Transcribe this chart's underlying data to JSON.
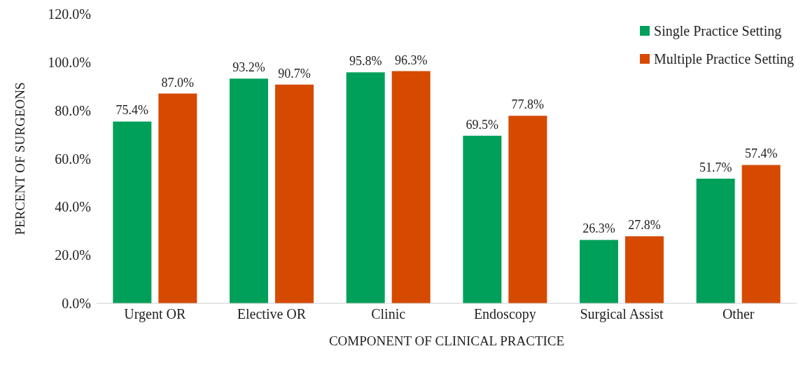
{
  "chart_data": {
    "type": "bar",
    "xlabel": "COMPONENT OF CLINICAL PRACTICE",
    "ylabel": "PERCENT OF SURGEONS",
    "categories": [
      "Urgent OR",
      "Elective OR",
      "Clinic",
      "Endoscopy",
      "Surgical Assist",
      "Other"
    ],
    "series": [
      {
        "name": "Single Practice Setting",
        "color": "#00a05a",
        "values": [
          75.4,
          93.2,
          95.8,
          69.5,
          26.3,
          51.7
        ],
        "value_labels": [
          "75.4%",
          "93.2%",
          "95.8%",
          "69.5%",
          "26.3%",
          "51.7%"
        ]
      },
      {
        "name": "Multiple Practice Setting",
        "color": "#d64a00",
        "values": [
          87.0,
          90.7,
          96.3,
          77.8,
          27.8,
          57.4
        ],
        "value_labels": [
          "87.0%",
          "90.7%",
          "96.3%",
          "77.8%",
          "27.8%",
          "57.4%"
        ]
      }
    ],
    "ylim": [
      0,
      120
    ],
    "yticks": [
      {
        "value": 0,
        "label": "0.0%"
      },
      {
        "value": 20,
        "label": "20.0%"
      },
      {
        "value": 40,
        "label": "40.0%"
      },
      {
        "value": 60,
        "label": "60.0%"
      },
      {
        "value": 80,
        "label": "80.0%"
      },
      {
        "value": 100,
        "label": "100.0%"
      },
      {
        "value": 120,
        "label": "120.0%"
      }
    ],
    "grid": false,
    "legend": "top right"
  }
}
